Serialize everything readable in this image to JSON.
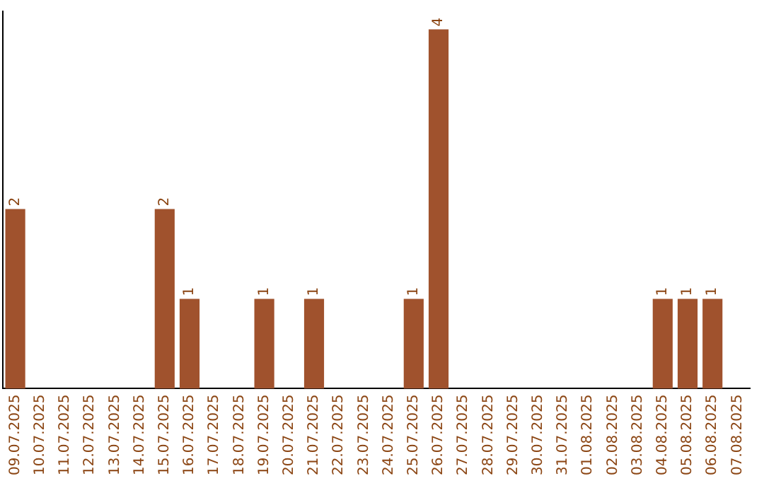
{
  "chart_data": {
    "type": "bar",
    "categories": [
      "09.07.2025",
      "10.07.2025",
      "11.07.2025",
      "12.07.2025",
      "13.07.2025",
      "14.07.2025",
      "15.07.2025",
      "16.07.2025",
      "17.07.2025",
      "18.07.2025",
      "19.07.2025",
      "20.07.2025",
      "21.07.2025",
      "22.07.2025",
      "23.07.2025",
      "24.07.2025",
      "25.07.2025",
      "26.07.2025",
      "27.07.2025",
      "28.07.2025",
      "29.07.2025",
      "30.07.2025",
      "31.07.2025",
      "01.08.2025",
      "02.08.2025",
      "03.08.2025",
      "04.08.2025",
      "05.08.2025",
      "06.08.2025",
      "07.08.2025"
    ],
    "values": [
      2,
      0,
      0,
      0,
      0,
      0,
      2,
      1,
      0,
      0,
      1,
      0,
      1,
      0,
      0,
      0,
      1,
      4,
      0,
      0,
      0,
      0,
      0,
      0,
      0,
      0,
      1,
      1,
      1,
      0
    ],
    "value_labels": [
      "2",
      null,
      null,
      null,
      null,
      null,
      "2",
      "1",
      null,
      null,
      "1",
      null,
      "1",
      null,
      null,
      null,
      "1",
      "4",
      null,
      null,
      null,
      null,
      null,
      null,
      null,
      null,
      "1",
      "1",
      "1",
      null
    ],
    "color": "#a0522d",
    "ylim": [
      0,
      4.2
    ],
    "tick_labels": "x",
    "grid": false,
    "legend": false
  }
}
